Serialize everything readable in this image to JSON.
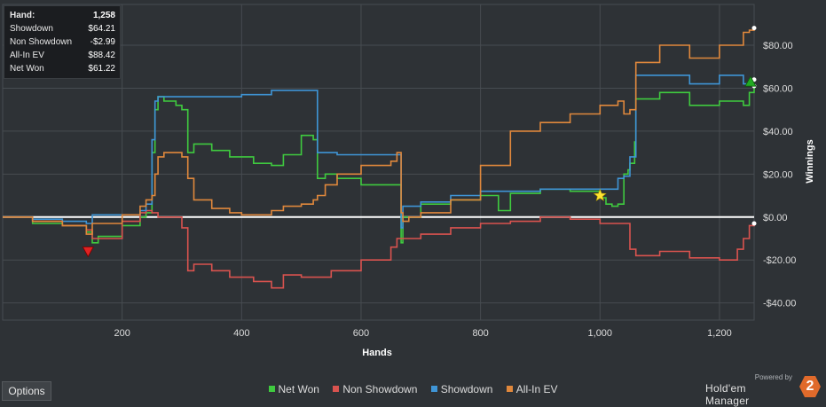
{
  "summary": {
    "rows": [
      {
        "label": "Hand:",
        "value": "1,258"
      },
      {
        "label": "Showdown",
        "value": "$64.21"
      },
      {
        "label": "Non Showdown",
        "value": "-$2.99"
      },
      {
        "label": "All-In EV",
        "value": "$88.42"
      },
      {
        "label": "Net Won",
        "value": "$61.22"
      }
    ]
  },
  "options_label": "Options",
  "branding": {
    "powered_by": "Powered by",
    "name": "Hold'em Manager",
    "logo_text": "2"
  },
  "colors": {
    "background": "#2e3236",
    "grid": "#474c51",
    "zero_line": "#ffffff",
    "net_won": "#3fca3f",
    "non_showdown": "#d9534f",
    "showdown": "#3f95d6",
    "all_in_ev": "#e0883c"
  },
  "chart_data": {
    "type": "line",
    "title": "",
    "xlabel": "Hands",
    "ylabel": "Winnings",
    "xlim": [
      0,
      1258
    ],
    "ylim": [
      -48,
      99
    ],
    "x_ticks": [
      200,
      400,
      600,
      800,
      1000,
      1200
    ],
    "x_tick_labels": [
      "200",
      "400",
      "600",
      "800",
      "1,000",
      "1,200"
    ],
    "y_ticks": [
      -40,
      -20,
      0,
      20,
      40,
      60,
      80
    ],
    "y_tick_labels": [
      "-$40.00",
      "-$20.00",
      "$0.00",
      "$20.00",
      "$40.00",
      "$60.00",
      "$80.00"
    ],
    "grid": true,
    "legend": "bottom",
    "series": [
      {
        "name": "Net Won",
        "color": "#3fca3f",
        "x": [
          0,
          50,
          100,
          140,
          150,
          160,
          200,
          230,
          240,
          250,
          255,
          260,
          270,
          290,
          300,
          310,
          320,
          350,
          380,
          420,
          450,
          470,
          500,
          520,
          527,
          540,
          560,
          600,
          660,
          667,
          670,
          700,
          750,
          800,
          820,
          830,
          850,
          900,
          950,
          1000,
          1010,
          1020,
          1030,
          1040,
          1047,
          1050,
          1058,
          1060,
          1100,
          1150,
          1200,
          1240,
          1250,
          1258
        ],
        "y": [
          0,
          -3,
          -4,
          -7,
          -12,
          -9,
          -4,
          0,
          2,
          30,
          50,
          56,
          54,
          52,
          50,
          30,
          34,
          31,
          28,
          25,
          24,
          29,
          38,
          36,
          18,
          20,
          18,
          15,
          15,
          -12,
          0,
          6,
          8,
          10,
          10,
          3,
          11,
          13,
          12,
          9,
          6,
          5,
          6,
          20,
          22,
          25,
          35,
          55,
          58,
          52,
          54,
          52,
          58,
          61
        ]
      },
      {
        "name": "Non Showdown",
        "color": "#d9534f",
        "x": [
          0,
          50,
          100,
          140,
          150,
          200,
          230,
          240,
          250,
          260,
          300,
          310,
          320,
          350,
          380,
          420,
          450,
          470,
          500,
          550,
          600,
          650,
          660,
          700,
          750,
          800,
          850,
          900,
          950,
          1000,
          1050,
          1060,
          1100,
          1150,
          1200,
          1230,
          1240,
          1250,
          1258
        ],
        "y": [
          0,
          -2,
          -4,
          -6,
          -10,
          -2,
          2,
          3,
          2,
          0,
          -5,
          -25,
          -22,
          -25,
          -28,
          -30,
          -33,
          -27,
          -28,
          -25,
          -20,
          -14,
          -10,
          -8,
          -5,
          -3,
          -2,
          0,
          -1,
          -3,
          -15,
          -18,
          -16,
          -19,
          -20,
          -15,
          -10,
          -4,
          -3
        ]
      },
      {
        "name": "Showdown",
        "color": "#3f95d6",
        "x": [
          0,
          50,
          100,
          140,
          150,
          200,
          230,
          240,
          250,
          255,
          260,
          270,
          300,
          350,
          400,
          450,
          500,
          520,
          527,
          560,
          600,
          650,
          660,
          667,
          670,
          700,
          750,
          800,
          850,
          900,
          950,
          1000,
          1030,
          1040,
          1050,
          1060,
          1100,
          1150,
          1200,
          1240,
          1250,
          1258
        ],
        "y": [
          0,
          -1,
          -2,
          -3,
          1,
          1,
          3,
          6,
          36,
          54,
          56,
          56,
          56,
          56,
          57,
          59,
          59,
          59,
          30,
          29,
          29,
          29,
          29,
          -5,
          5,
          7,
          10,
          12,
          12,
          13,
          13,
          13,
          18,
          19,
          28,
          66,
          66,
          62,
          66,
          62,
          64,
          64
        ]
      },
      {
        "name": "All-In EV",
        "color": "#e0883c",
        "x": [
          0,
          50,
          100,
          140,
          150,
          200,
          230,
          240,
          250,
          255,
          260,
          270,
          300,
          310,
          320,
          350,
          380,
          400,
          450,
          470,
          500,
          520,
          527,
          540,
          560,
          600,
          650,
          660,
          667,
          670,
          680,
          700,
          750,
          800,
          850,
          900,
          950,
          1000,
          1030,
          1040,
          1050,
          1060,
          1100,
          1150,
          1200,
          1240,
          1250,
          1258
        ],
        "y": [
          0,
          -2,
          -4,
          -8,
          -3,
          1,
          5,
          8,
          10,
          20,
          28,
          30,
          28,
          18,
          8,
          4,
          2,
          1,
          3,
          5,
          6,
          8,
          10,
          15,
          20,
          24,
          26,
          30,
          2,
          -2,
          0,
          2,
          8,
          24,
          40,
          44,
          48,
          52,
          54,
          48,
          50,
          72,
          80,
          74,
          80,
          86,
          87,
          88
        ]
      }
    ],
    "markers": [
      {
        "type": "triangle-down",
        "color": "#e02222",
        "x": 143,
        "y": -16
      },
      {
        "type": "star",
        "color": "#ffe333",
        "x": 1000,
        "y": 10
      },
      {
        "type": "triangle-up",
        "color": "#22aa22",
        "x": 1252,
        "y": 63
      }
    ]
  }
}
